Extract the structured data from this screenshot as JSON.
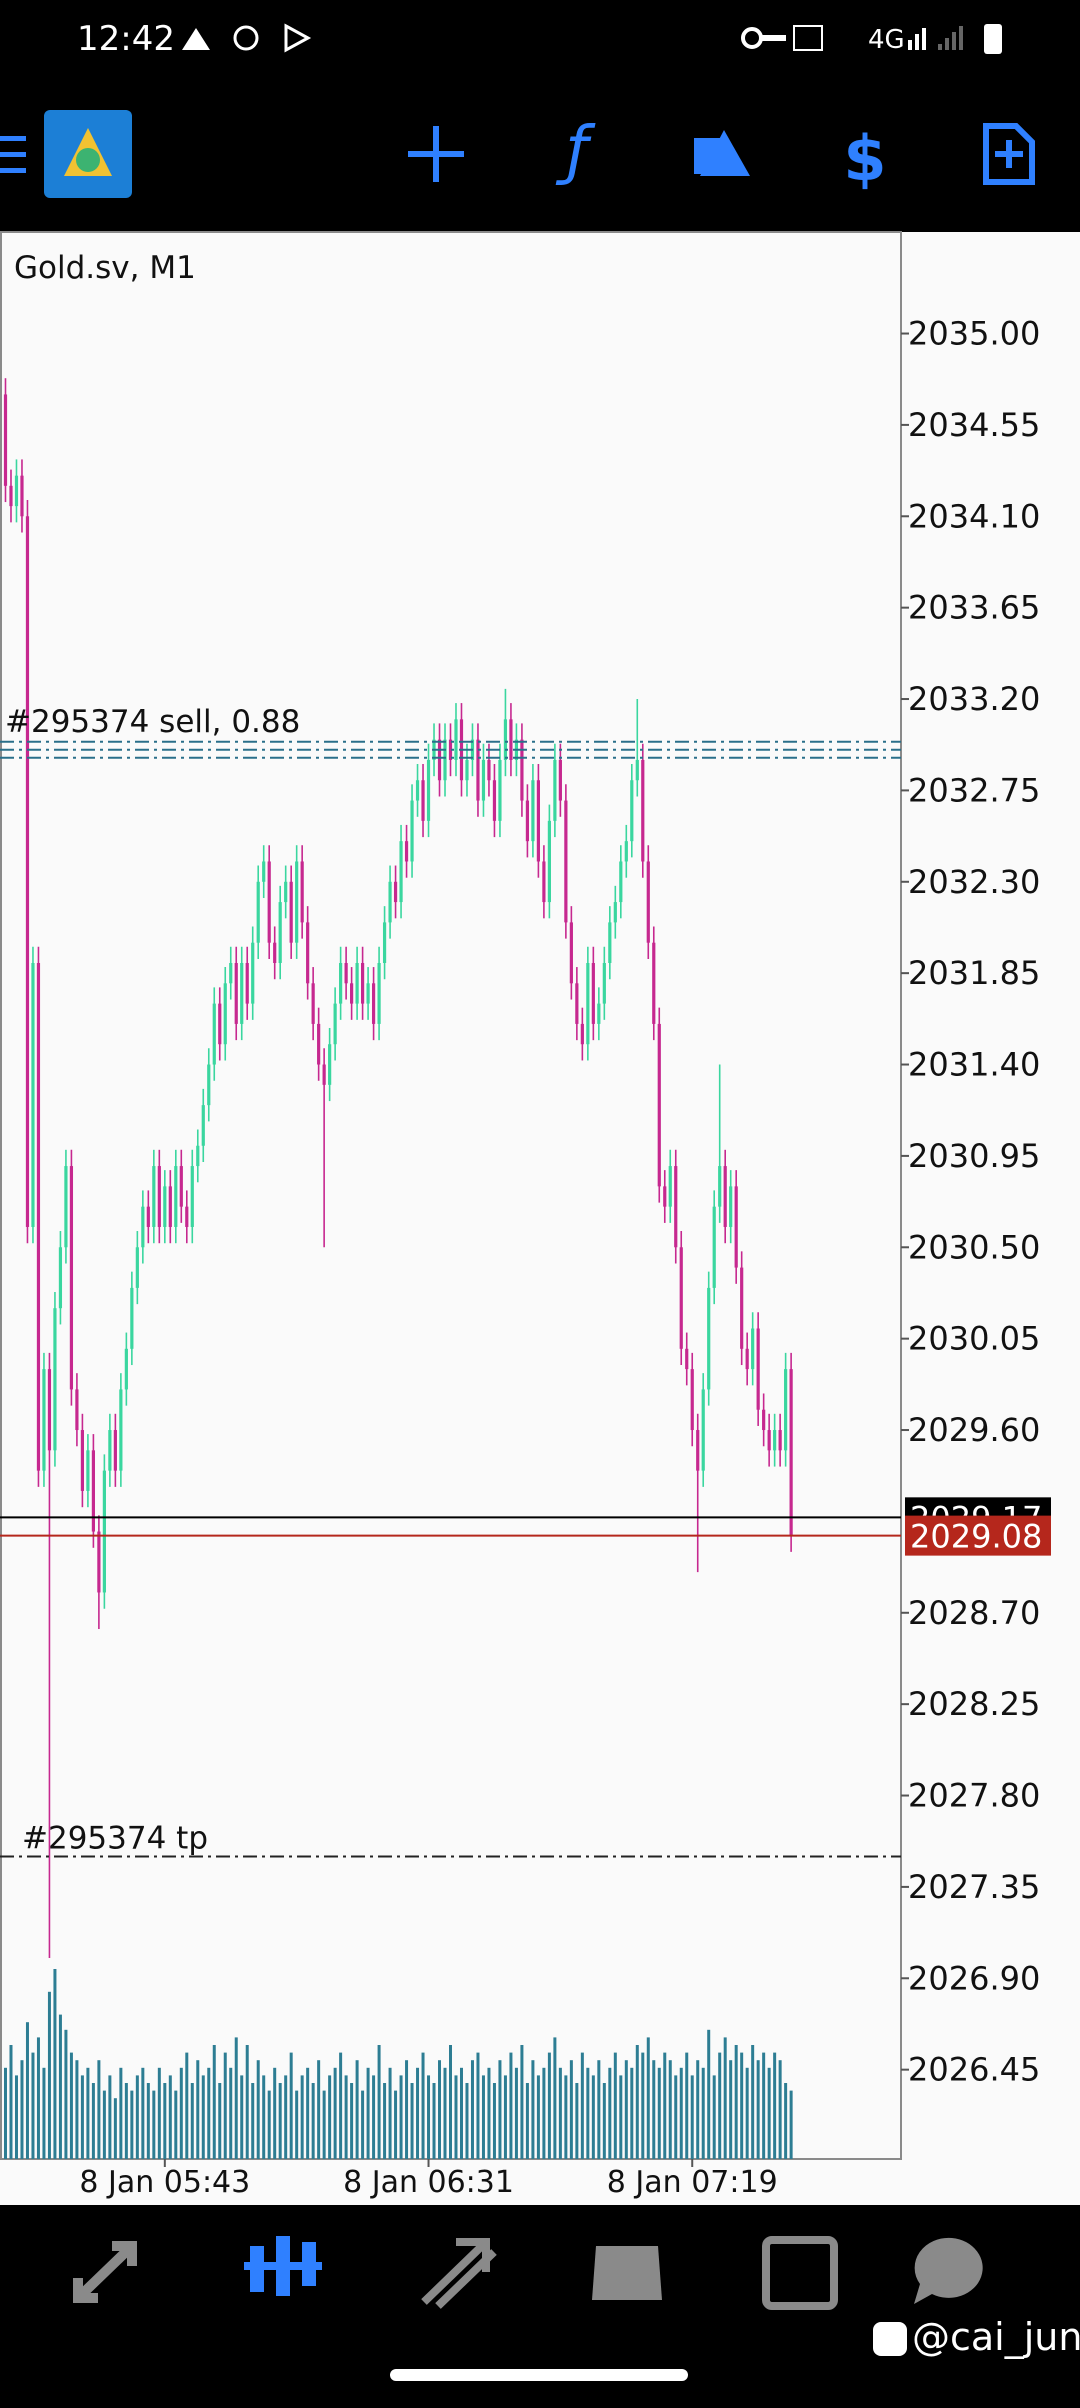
{
  "status_bar": {
    "time": "12:42",
    "network": "4G"
  },
  "chart_data": {
    "type": "candlestick",
    "title": "Gold.sv, M1",
    "colors": {
      "up": "#3ad69f",
      "down": "#c6288f",
      "volume": "#2d7d93"
    },
    "ylim": [
      2026.01,
      2035.5
    ],
    "yticks": [
      {
        "value": 2035,
        "label": "2035.00"
      },
      2034.55,
      {
        "value": 2034.1,
        "label": "2034.10"
      },
      2033.65,
      {
        "value": 2033.2,
        "label": "2033.20"
      },
      2032.75,
      {
        "value": 2032.3,
        "label": "2032.30"
      },
      2031.85,
      {
        "value": 2031.4,
        "label": "2031.40"
      },
      2030.95,
      {
        "value": 2030.5,
        "label": "2030.50"
      },
      2030.05,
      {
        "value": 2029.6,
        "label": "2029.60"
      },
      {
        "value": 2028.7,
        "label": "2028.70"
      },
      2028.25,
      {
        "value": 2027.8,
        "label": "2027.80"
      },
      2027.35,
      {
        "value": 2026.9,
        "label": "2026.90"
      },
      2026.45
    ],
    "xlim": [
      -1,
      163
    ],
    "xticks": [
      {
        "value": 29,
        "label": "8 Jan 05:43"
      },
      {
        "value": 77,
        "label": "8 Jan 06:31"
      },
      {
        "value": 125,
        "label": "8 Jan 07:19"
      }
    ],
    "candles": [
      [
        2034.7,
        2034.78,
        2034.17,
        2034.25
      ],
      [
        2034.25,
        2034.33,
        2034.07,
        2034.15
      ],
      [
        2034.15,
        2034.38,
        2034.07,
        2034.3
      ],
      [
        2034.3,
        2034.38,
        2034.02,
        2034.1
      ],
      [
        2034.1,
        2034.18,
        2030.52,
        2030.6
      ],
      [
        2030.6,
        2031.98,
        2030.52,
        2031.9
      ],
      [
        2031.9,
        2031.98,
        2029.32,
        2029.4
      ],
      [
        2029.4,
        2029.98,
        2029.32,
        2029.9
      ],
      [
        2029.9,
        2029.98,
        2027,
        2029.5
      ],
      [
        2029.5,
        2030.28,
        2029.42,
        2030.2
      ],
      [
        2030.2,
        2030.58,
        2030.12,
        2030.5
      ],
      [
        2030.5,
        2030.98,
        2030.42,
        2030.9
      ],
      [
        2030.9,
        2030.98,
        2029.72,
        2029.8
      ],
      [
        2029.8,
        2029.88,
        2029.52,
        2029.6
      ],
      [
        2029.6,
        2029.68,
        2029.22,
        2029.3
      ],
      [
        2029.3,
        2029.58,
        2029.22,
        2029.5
      ],
      [
        2029.5,
        2029.58,
        2029.02,
        2029.1
      ],
      [
        2029.1,
        2029.18,
        2028.62,
        2028.8
      ],
      [
        2028.8,
        2029.48,
        2028.72,
        2029.4
      ],
      [
        2029.4,
        2029.68,
        2029.32,
        2029.6
      ],
      [
        2029.6,
        2029.68,
        2029.32,
        2029.4
      ],
      [
        2029.4,
        2029.88,
        2029.32,
        2029.8
      ],
      [
        2029.8,
        2030.08,
        2029.72,
        2030
      ],
      [
        2030,
        2030.38,
        2029.92,
        2030.3
      ],
      [
        2030.3,
        2030.58,
        2030.22,
        2030.5
      ],
      [
        2030.5,
        2030.78,
        2030.42,
        2030.7
      ],
      [
        2030.7,
        2030.78,
        2030.52,
        2030.6
      ],
      [
        2030.6,
        2030.98,
        2030.52,
        2030.9
      ],
      [
        2030.9,
        2030.98,
        2030.52,
        2030.6
      ],
      [
        2030.6,
        2030.88,
        2030.52,
        2030.8
      ],
      [
        2030.8,
        2030.88,
        2030.52,
        2030.6
      ],
      [
        2030.6,
        2030.98,
        2030.52,
        2030.9
      ],
      [
        2030.9,
        2030.98,
        2030.62,
        2030.7
      ],
      [
        2030.7,
        2030.78,
        2030.52,
        2030.6
      ],
      [
        2030.6,
        2030.98,
        2030.52,
        2030.9
      ],
      [
        2030.9,
        2031.08,
        2030.82,
        2031
      ],
      [
        2031,
        2031.28,
        2030.92,
        2031.2
      ],
      [
        2031.2,
        2031.48,
        2031.12,
        2031.4
      ],
      [
        2031.4,
        2031.78,
        2031.32,
        2031.7
      ],
      [
        2031.7,
        2031.78,
        2031.42,
        2031.5
      ],
      [
        2031.5,
        2031.88,
        2031.42,
        2031.8
      ],
      [
        2031.8,
        2031.98,
        2031.72,
        2031.9
      ],
      [
        2031.9,
        2031.98,
        2031.52,
        2031.6
      ],
      [
        2031.6,
        2031.98,
        2031.52,
        2031.9
      ],
      [
        2031.9,
        2031.98,
        2031.62,
        2031.7
      ],
      [
        2031.7,
        2032.08,
        2031.62,
        2032
      ],
      [
        2032,
        2032.38,
        2031.92,
        2032.3
      ],
      [
        2032.3,
        2032.48,
        2032.22,
        2032.4
      ],
      [
        2032.4,
        2032.48,
        2031.92,
        2032
      ],
      [
        2032,
        2032.08,
        2031.82,
        2031.9
      ],
      [
        2031.9,
        2032.28,
        2031.82,
        2032.2
      ],
      [
        2032.2,
        2032.38,
        2032.12,
        2032.3
      ],
      [
        2032.3,
        2032.38,
        2031.92,
        2032
      ],
      [
        2032,
        2032.48,
        2031.92,
        2032.4
      ],
      [
        2032.4,
        2032.48,
        2032.02,
        2032.1
      ],
      [
        2032.1,
        2032.18,
        2031.72,
        2031.8
      ],
      [
        2031.8,
        2031.88,
        2031.52,
        2031.6
      ],
      [
        2031.6,
        2031.68,
        2031.32,
        2031.4
      ],
      [
        2031.4,
        2031.48,
        2030.5,
        2031.3
      ],
      [
        2031.3,
        2031.58,
        2031.22,
        2031.5
      ],
      [
        2031.5,
        2031.78,
        2031.42,
        2031.7
      ],
      [
        2031.7,
        2031.98,
        2031.62,
        2031.9
      ],
      [
        2031.9,
        2031.98,
        2031.72,
        2031.8
      ],
      [
        2031.8,
        2031.88,
        2031.62,
        2031.7
      ],
      [
        2031.7,
        2031.98,
        2031.62,
        2031.9
      ],
      [
        2031.9,
        2031.98,
        2031.62,
        2031.7
      ],
      [
        2031.7,
        2031.88,
        2031.62,
        2031.8
      ],
      [
        2031.8,
        2031.88,
        2031.52,
        2031.6
      ],
      [
        2031.6,
        2031.98,
        2031.52,
        2031.9
      ],
      [
        2031.9,
        2032.18,
        2031.82,
        2032.1
      ],
      [
        2032.1,
        2032.38,
        2032.02,
        2032.3
      ],
      [
        2032.3,
        2032.38,
        2032.12,
        2032.2
      ],
      [
        2032.2,
        2032.58,
        2032.12,
        2032.5
      ],
      [
        2032.5,
        2032.58,
        2032.32,
        2032.4
      ],
      [
        2032.4,
        2032.78,
        2032.32,
        2032.7
      ],
      [
        2032.7,
        2032.88,
        2032.62,
        2032.8
      ],
      [
        2032.8,
        2032.88,
        2032.52,
        2032.6
      ],
      [
        2032.6,
        2032.98,
        2032.52,
        2032.9
      ],
      [
        2032.9,
        2033.08,
        2032.82,
        2033
      ],
      [
        2033,
        2033.08,
        2032.72,
        2032.8
      ],
      [
        2032.8,
        2033.08,
        2032.72,
        2033
      ],
      [
        2033,
        2033.08,
        2032.82,
        2032.9
      ],
      [
        2032.9,
        2033.18,
        2032.82,
        2033.1
      ],
      [
        2033.1,
        2033.18,
        2032.72,
        2032.8
      ],
      [
        2032.8,
        2032.98,
        2032.72,
        2032.9
      ],
      [
        2032.9,
        2033.08,
        2032.82,
        2033
      ],
      [
        2033,
        2033.08,
        2032.62,
        2032.7
      ],
      [
        2032.7,
        2032.98,
        2032.62,
        2032.9
      ],
      [
        2032.9,
        2032.98,
        2032.72,
        2032.8
      ],
      [
        2032.8,
        2032.88,
        2032.52,
        2032.6
      ],
      [
        2032.6,
        2032.98,
        2032.52,
        2032.9
      ],
      [
        2032.9,
        2033.25,
        2032.82,
        2033.1
      ],
      [
        2033.1,
        2033.18,
        2032.82,
        2032.9
      ],
      [
        2032.9,
        2033.08,
        2032.82,
        2033
      ],
      [
        2033,
        2033.08,
        2032.62,
        2032.7
      ],
      [
        2032.7,
        2032.78,
        2032.42,
        2032.5
      ],
      [
        2032.5,
        2032.88,
        2032.42,
        2032.8
      ],
      [
        2032.8,
        2032.88,
        2032.32,
        2032.4
      ],
      [
        2032.4,
        2032.48,
        2032.12,
        2032.2
      ],
      [
        2032.2,
        2032.68,
        2032.12,
        2032.6
      ],
      [
        2032.6,
        2032.98,
        2032.52,
        2032.9
      ],
      [
        2032.9,
        2032.98,
        2032.62,
        2032.7
      ],
      [
        2032.7,
        2032.78,
        2032.02,
        2032.1
      ],
      [
        2032.1,
        2032.18,
        2031.72,
        2031.8
      ],
      [
        2031.8,
        2031.88,
        2031.52,
        2031.6
      ],
      [
        2031.6,
        2031.68,
        2031.42,
        2031.5
      ],
      [
        2031.5,
        2031.98,
        2031.42,
        2031.9
      ],
      [
        2031.9,
        2031.98,
        2031.52,
        2031.6
      ],
      [
        2031.6,
        2031.78,
        2031.52,
        2031.7
      ],
      [
        2031.7,
        2031.98,
        2031.62,
        2031.9
      ],
      [
        2031.9,
        2032.18,
        2031.82,
        2032.1
      ],
      [
        2032.1,
        2032.28,
        2032.02,
        2032.2
      ],
      [
        2032.2,
        2032.48,
        2032.12,
        2032.4
      ],
      [
        2032.4,
        2032.58,
        2032.32,
        2032.5
      ],
      [
        2032.5,
        2032.88,
        2032.42,
        2032.8
      ],
      [
        2032.8,
        2033.2,
        2032.72,
        2032.9
      ],
      [
        2032.9,
        2032.98,
        2032.32,
        2032.4
      ],
      [
        2032.4,
        2032.48,
        2031.92,
        2032
      ],
      [
        2032,
        2032.08,
        2031.52,
        2031.6
      ],
      [
        2031.6,
        2031.68,
        2030.72,
        2030.8
      ],
      [
        2030.8,
        2030.88,
        2030.62,
        2030.7
      ],
      [
        2030.7,
        2030.98,
        2030.62,
        2030.9
      ],
      [
        2030.9,
        2030.98,
        2030.42,
        2030.5
      ],
      [
        2030.5,
        2030.58,
        2029.92,
        2030
      ],
      [
        2030,
        2030.08,
        2029.82,
        2029.9
      ],
      [
        2029.9,
        2029.98,
        2029.52,
        2029.6
      ],
      [
        2029.6,
        2029.68,
        2028.9,
        2029.4
      ],
      [
        2029.4,
        2029.88,
        2029.32,
        2029.8
      ],
      [
        2029.8,
        2030.38,
        2029.72,
        2030.3
      ],
      [
        2030.3,
        2030.78,
        2030.22,
        2030.7
      ],
      [
        2030.7,
        2031.4,
        2030.62,
        2030.9
      ],
      [
        2030.9,
        2030.98,
        2030.52,
        2030.6
      ],
      [
        2030.6,
        2030.88,
        2030.52,
        2030.8
      ],
      [
        2030.8,
        2030.88,
        2030.32,
        2030.4
      ],
      [
        2030.4,
        2030.48,
        2029.92,
        2030
      ],
      [
        2030,
        2030.08,
        2029.82,
        2029.9
      ],
      [
        2029.9,
        2030.18,
        2029.82,
        2030.1
      ],
      [
        2030.1,
        2030.18,
        2029.62,
        2029.7
      ],
      [
        2029.7,
        2029.78,
        2029.52,
        2029.6
      ],
      [
        2029.6,
        2029.68,
        2029.42,
        2029.5
      ],
      [
        2029.5,
        2029.68,
        2029.42,
        2029.6
      ],
      [
        2029.6,
        2029.68,
        2029.42,
        2029.5
      ],
      [
        2029.5,
        2029.98,
        2029.42,
        2029.9
      ],
      [
        2029.9,
        2029.98,
        2029,
        2029.08
      ]
    ],
    "volume": [
      60,
      75,
      55,
      65,
      90,
      70,
      80,
      60,
      110,
      125,
      95,
      85,
      70,
      65,
      55,
      60,
      50,
      65,
      45,
      55,
      40,
      60,
      50,
      45,
      55,
      60,
      50,
      45,
      60,
      50,
      55,
      45,
      60,
      70,
      50,
      65,
      55,
      60,
      75,
      50,
      70,
      60,
      80,
      55,
      75,
      50,
      65,
      55,
      45,
      60,
      50,
      55,
      70,
      45,
      55,
      60,
      50,
      65,
      45,
      55,
      60,
      70,
      55,
      50,
      65,
      45,
      60,
      55,
      75,
      50,
      60,
      45,
      55,
      65,
      50,
      60,
      70,
      55,
      50,
      65,
      60,
      75,
      55,
      60,
      50,
      65,
      70,
      55,
      60,
      50,
      65,
      55,
      70,
      60,
      75,
      50,
      65,
      55,
      60,
      70,
      80,
      60,
      55,
      65,
      50,
      70,
      60,
      55,
      65,
      50,
      60,
      70,
      55,
      65,
      60,
      75,
      70,
      80,
      65,
      60,
      70,
      65,
      55,
      60,
      70,
      55,
      65,
      60,
      85,
      55,
      70,
      80,
      65,
      75,
      70,
      60,
      75,
      65,
      70,
      60,
      70,
      65,
      50,
      45
    ],
    "order_lines": [
      {
        "label": "#295374 sell, 0.88",
        "value": 2032.95,
        "color": "#2a6f8a"
      },
      {
        "label": "#295374 tp",
        "value": 2027.5,
        "color": "#222222"
      }
    ],
    "ask": {
      "value": 2029.17,
      "color": "#000000"
    },
    "bid": {
      "value": 2029.08,
      "color": "#b5271c"
    }
  },
  "watermark": "@cai_jun"
}
